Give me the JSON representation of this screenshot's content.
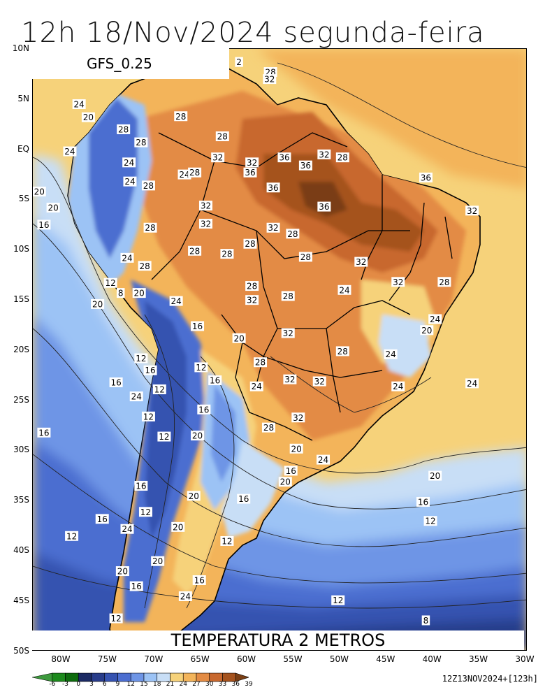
{
  "title": "12h 18/Nov/2024 segunda-feira",
  "model": "GFS_0.25",
  "footer": "TEMPERATURA 2 METROS",
  "run_info": "12Z13NOV2024+[123h]",
  "lat_labels": [
    "10N",
    "5N",
    "EQ",
    "5S",
    "10S",
    "15S",
    "20S",
    "25S",
    "30S",
    "35S",
    "40S",
    "45S",
    "50S"
  ],
  "lon_labels": [
    "80W",
    "75W",
    "70W",
    "65W",
    "60W",
    "55W",
    "50W",
    "45W",
    "40W",
    "35W",
    "30W"
  ],
  "colorbar": {
    "labels": [
      "-6",
      "-3",
      "0",
      "3",
      "6",
      "9",
      "12",
      "15",
      "18",
      "21",
      "24",
      "27",
      "30",
      "33",
      "36",
      "39"
    ],
    "colors": [
      "#3d9a3d",
      "#1c8a1c",
      "#0d6b0d",
      "#1b2a63",
      "#283c8a",
      "#3552b0",
      "#4c6ed0",
      "#6e95e6",
      "#9cc3f5",
      "#c8def6",
      "#f6d27a",
      "#f3b45a",
      "#e38b44",
      "#c8682e",
      "#a5521d",
      "#7a3e14"
    ]
  },
  "contour_labels": [
    {
      "text": "24",
      "lon": -78.5,
      "lat": 4.5
    },
    {
      "text": "20",
      "lon": -77.5,
      "lat": 3.2
    },
    {
      "text": "28",
      "lon": -73.7,
      "lat": 2.0
    },
    {
      "text": "28",
      "lon": -67.5,
      "lat": 3.3
    },
    {
      "text": "28",
      "lon": -71.8,
      "lat": 0.7
    },
    {
      "text": "24",
      "lon": -79.5,
      "lat": -0.2
    },
    {
      "text": "32",
      "lon": -63.5,
      "lat": -0.8
    },
    {
      "text": "28",
      "lon": -63.0,
      "lat": 1.3
    },
    {
      "text": "24",
      "lon": -73.1,
      "lat": -1.3
    },
    {
      "text": "24",
      "lon": -73.0,
      "lat": -3.2
    },
    {
      "text": "24",
      "lon": -67.1,
      "lat": -2.5
    },
    {
      "text": "28",
      "lon": -66.0,
      "lat": -2.3
    },
    {
      "text": "32",
      "lon": -59.8,
      "lat": -1.3
    },
    {
      "text": "36",
      "lon": -60.0,
      "lat": -2.3
    },
    {
      "text": "36",
      "lon": -56.3,
      "lat": -0.8
    },
    {
      "text": "36",
      "lon": -54.0,
      "lat": -1.6
    },
    {
      "text": "32",
      "lon": -52.0,
      "lat": -0.5
    },
    {
      "text": "28",
      "lon": -50.0,
      "lat": -0.8
    },
    {
      "text": "36",
      "lon": -41.0,
      "lat": -2.8
    },
    {
      "text": "36",
      "lon": -57.5,
      "lat": -3.8
    },
    {
      "text": "28",
      "lon": -71.0,
      "lat": -3.6
    },
    {
      "text": "20",
      "lon": -82.8,
      "lat": -4.2
    },
    {
      "text": "20",
      "lon": -81.3,
      "lat": -5.8
    },
    {
      "text": "16",
      "lon": -82.3,
      "lat": -7.5
    },
    {
      "text": "32",
      "lon": -64.8,
      "lat": -5.6
    },
    {
      "text": "36",
      "lon": -52.0,
      "lat": -5.7
    },
    {
      "text": "32",
      "lon": -36.0,
      "lat": -6.1
    },
    {
      "text": "28",
      "lon": -70.8,
      "lat": -7.8
    },
    {
      "text": "32",
      "lon": -64.8,
      "lat": -7.4
    },
    {
      "text": "32",
      "lon": -57.5,
      "lat": -7.8
    },
    {
      "text": "28",
      "lon": -55.4,
      "lat": -8.4
    },
    {
      "text": "28",
      "lon": -60.0,
      "lat": -9.4
    },
    {
      "text": "28",
      "lon": -66.0,
      "lat": -10.1
    },
    {
      "text": "28",
      "lon": -62.5,
      "lat": -10.4
    },
    {
      "text": "24",
      "lon": -73.3,
      "lat": -10.8
    },
    {
      "text": "28",
      "lon": -54.0,
      "lat": -10.7
    },
    {
      "text": "32",
      "lon": -48.0,
      "lat": -11.2
    },
    {
      "text": "28",
      "lon": -71.4,
      "lat": -11.6
    },
    {
      "text": "12",
      "lon": -75.1,
      "lat": -13.3
    },
    {
      "text": "32",
      "lon": -44.0,
      "lat": -13.2
    },
    {
      "text": "28",
      "lon": -39.0,
      "lat": -13.2
    },
    {
      "text": "8",
      "lon": -74.0,
      "lat": -14.3
    },
    {
      "text": "20",
      "lon": -72.0,
      "lat": -14.3
    },
    {
      "text": "28",
      "lon": -59.8,
      "lat": -13.6
    },
    {
      "text": "24",
      "lon": -49.8,
      "lat": -14.0
    },
    {
      "text": "28",
      "lon": -55.9,
      "lat": -14.6
    },
    {
      "text": "32",
      "lon": -59.8,
      "lat": -15.0
    },
    {
      "text": "24",
      "lon": -68.0,
      "lat": -15.1
    },
    {
      "text": "20",
      "lon": -76.5,
      "lat": -15.4
    },
    {
      "text": "16",
      "lon": -65.7,
      "lat": -17.6
    },
    {
      "text": "24",
      "lon": -40.0,
      "lat": -16.9
    },
    {
      "text": "20",
      "lon": -40.9,
      "lat": -18.0
    },
    {
      "text": "32",
      "lon": -55.9,
      "lat": -18.3
    },
    {
      "text": "20",
      "lon": -61.2,
      "lat": -18.8
    },
    {
      "text": "28",
      "lon": -50.0,
      "lat": -20.1
    },
    {
      "text": "24",
      "lon": -44.8,
      "lat": -20.4
    },
    {
      "text": "12",
      "lon": -71.8,
      "lat": -20.8
    },
    {
      "text": "28",
      "lon": -58.9,
      "lat": -21.2
    },
    {
      "text": "12",
      "lon": -65.3,
      "lat": -21.7
    },
    {
      "text": "16",
      "lon": -70.8,
      "lat": -22.0
    },
    {
      "text": "16",
      "lon": -63.8,
      "lat": -23.0
    },
    {
      "text": "16",
      "lon": -74.5,
      "lat": -23.2
    },
    {
      "text": "32",
      "lon": -55.7,
      "lat": -22.9
    },
    {
      "text": "32",
      "lon": -52.5,
      "lat": -23.1
    },
    {
      "text": "24",
      "lon": -59.3,
      "lat": -23.6
    },
    {
      "text": "24",
      "lon": -44.0,
      "lat": -23.6
    },
    {
      "text": "24",
      "lon": -36.0,
      "lat": -23.3
    },
    {
      "text": "12",
      "lon": -69.8,
      "lat": -23.9
    },
    {
      "text": "24",
      "lon": -72.3,
      "lat": -24.6
    },
    {
      "text": "16",
      "lon": -65.0,
      "lat": -25.9
    },
    {
      "text": "12",
      "lon": -71.0,
      "lat": -26.6
    },
    {
      "text": "32",
      "lon": -54.8,
      "lat": -26.7
    },
    {
      "text": "28",
      "lon": -58.0,
      "lat": -27.7
    },
    {
      "text": "16",
      "lon": -82.3,
      "lat": -28.2
    },
    {
      "text": "12",
      "lon": -69.3,
      "lat": -28.6
    },
    {
      "text": "20",
      "lon": -65.7,
      "lat": -28.5
    },
    {
      "text": "20",
      "lon": -55.0,
      "lat": -29.8
    },
    {
      "text": "24",
      "lon": -52.1,
      "lat": -30.9
    },
    {
      "text": "16",
      "lon": -55.6,
      "lat": -32.0
    },
    {
      "text": "20",
      "lon": -56.2,
      "lat": -33.1
    },
    {
      "text": "20",
      "lon": -40.0,
      "lat": -32.5
    },
    {
      "text": "16",
      "lon": -71.8,
      "lat": -33.5
    },
    {
      "text": "20",
      "lon": -66.1,
      "lat": -34.5
    },
    {
      "text": "16",
      "lon": -60.7,
      "lat": -34.8
    },
    {
      "text": "16",
      "lon": -41.3,
      "lat": -35.1
    },
    {
      "text": "12",
      "lon": -71.3,
      "lat": -36.1
    },
    {
      "text": "16",
      "lon": -76.0,
      "lat": -36.8
    },
    {
      "text": "12",
      "lon": -40.5,
      "lat": -37.0
    },
    {
      "text": "24",
      "lon": -73.3,
      "lat": -37.8
    },
    {
      "text": "20",
      "lon": -67.8,
      "lat": -37.6
    },
    {
      "text": "12",
      "lon": -79.3,
      "lat": -38.5
    },
    {
      "text": "12",
      "lon": -62.5,
      "lat": -39.0
    },
    {
      "text": "20",
      "lon": -70.0,
      "lat": -41.0
    },
    {
      "text": "20",
      "lon": -73.8,
      "lat": -42.0
    },
    {
      "text": "16",
      "lon": -65.5,
      "lat": -42.9
    },
    {
      "text": "16",
      "lon": -72.3,
      "lat": -43.5
    },
    {
      "text": "24",
      "lon": -67.0,
      "lat": -44.5
    },
    {
      "text": "12",
      "lon": -50.5,
      "lat": -44.9
    },
    {
      "text": "12",
      "lon": -74.5,
      "lat": -46.7
    },
    {
      "text": "8",
      "lon": -41.0,
      "lat": -46.9
    },
    {
      "text": "2",
      "lon": -61.2,
      "lat": 8.7
    },
    {
      "text": "28",
      "lon": -57.8,
      "lat": 7.7
    },
    {
      "text": "32",
      "lon": -57.9,
      "lat": 7.0
    }
  ]
}
